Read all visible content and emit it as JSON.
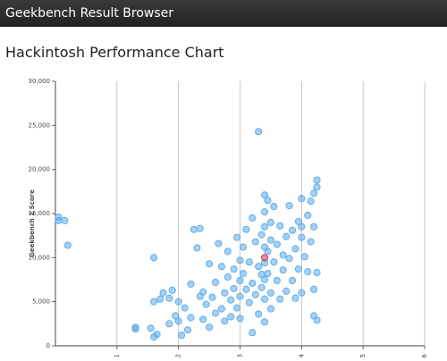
{
  "header": {
    "title": "Geekbench Result Browser"
  },
  "page_title": "Hackintosh Performance Chart",
  "chart_data": {
    "type": "scatter",
    "y_label": "Geekbench 2 Score",
    "xlim": [
      0,
      6
    ],
    "xticks": [
      1,
      2,
      3,
      4,
      5,
      6
    ],
    "ylim": [
      0,
      30000
    ],
    "yticks": [
      0,
      {
        "value": 5000,
        "label": "5,000"
      },
      {
        "value": 10000,
        "label": "10,000"
      },
      {
        "value": 15000,
        "label": "15,000"
      },
      {
        "value": 20000,
        "label": "20,000"
      },
      {
        "value": 25000,
        "label": "25,000"
      },
      {
        "value": 30000,
        "label": "30,000"
      }
    ],
    "grid": "x",
    "series": [
      {
        "color": "#5aaaea",
        "x": [
          0.05,
          0.05,
          0.15,
          0.2,
          1.3,
          1.3,
          1.55,
          1.6,
          1.65,
          1.6,
          1.6,
          1.7,
          1.75,
          1.85,
          1.85,
          1.9,
          1.95,
          2.0,
          2.0,
          2.05,
          2.1,
          2.15,
          2.2,
          2.2,
          2.25,
          2.3,
          2.35,
          2.35,
          2.4,
          2.4,
          2.45,
          2.5,
          2.5,
          2.55,
          2.6,
          2.6,
          2.65,
          2.7,
          2.7,
          2.75,
          2.75,
          2.8,
          2.8,
          2.85,
          2.85,
          2.9,
          2.9,
          2.95,
          2.95,
          3.0,
          3.0,
          3.0,
          3.0,
          3.05,
          3.05,
          3.1,
          3.1,
          3.15,
          3.15,
          3.2,
          3.2,
          3.2,
          3.25,
          3.25,
          3.3,
          3.3,
          3.3,
          3.35,
          3.35,
          3.35,
          3.4,
          3.4,
          3.4,
          3.4,
          3.4,
          3.4,
          3.4,
          3.4,
          3.45,
          3.45,
          3.45,
          3.5,
          3.5,
          3.5,
          3.5,
          3.55,
          3.55,
          3.6,
          3.6,
          3.65,
          3.65,
          3.7,
          3.7,
          3.75,
          3.75,
          3.8,
          3.8,
          3.85,
          3.85,
          3.9,
          3.9,
          3.95,
          3.95,
          4.0,
          4.0,
          4.0,
          4.05,
          4.1,
          4.1,
          4.15,
          4.15,
          4.2,
          4.2,
          4.2,
          4.25,
          4.25,
          4.25,
          4.2,
          4.25,
          4.0
        ],
        "values": [
          14600,
          14200,
          14200,
          11400,
          1900,
          2100,
          2000,
          1000,
          1300,
          5000,
          10000,
          5300,
          6000,
          2500,
          5400,
          6300,
          3400,
          2800,
          5000,
          1200,
          4300,
          1800,
          3200,
          7000,
          13200,
          11100,
          13300,
          5600,
          3000,
          6100,
          4700,
          2100,
          9300,
          5500,
          7200,
          3700,
          11600,
          9000,
          4200,
          6000,
          2800,
          7800,
          10700,
          5200,
          3300,
          8700,
          6500,
          12300,
          4300,
          9700,
          7400,
          5600,
          3100,
          11200,
          8200,
          6400,
          13200,
          9500,
          4900,
          14500,
          7100,
          1500,
          11800,
          5800,
          9000,
          24300,
          3600,
          12600,
          8100,
          6600,
          17100,
          15200,
          13500,
          11200,
          9400,
          7500,
          5300,
          2700,
          16500,
          10700,
          8200,
          14000,
          12000,
          6000,
          4200,
          15800,
          9500,
          11500,
          7400,
          13600,
          5300,
          10300,
          8600,
          12400,
          6200,
          15900,
          9900,
          13100,
          7400,
          11000,
          5400,
          14100,
          8700,
          16700,
          12300,
          6000,
          10100,
          14800,
          8400,
          16400,
          11800,
          13500,
          6400,
          3400,
          18000,
          8300,
          18800,
          17300,
          2900,
          13500
        ]
      },
      {
        "color": "#c0395a",
        "x": [
          3.4
        ],
        "values": [
          10000
        ]
      }
    ]
  }
}
